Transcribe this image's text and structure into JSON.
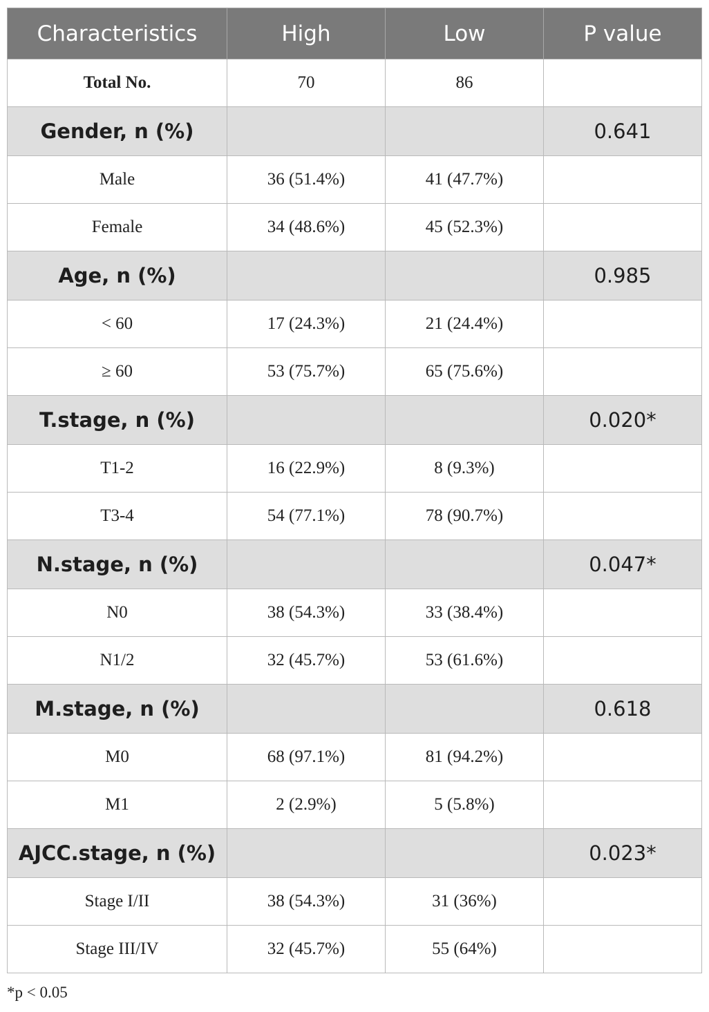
{
  "headers": [
    "Characteristics",
    "High",
    "Low",
    "P value"
  ],
  "total": {
    "label": "Total No.",
    "high": "70",
    "low": "86",
    "p": ""
  },
  "groups": [
    {
      "label": "Gender, n (%)",
      "p": "0.641",
      "rows": [
        {
          "label": "Male",
          "high": "36 (51.4%)",
          "low": "41 (47.7%)"
        },
        {
          "label": "Female",
          "high": "34 (48.6%)",
          "low": "45 (52.3%)"
        }
      ]
    },
    {
      "label": "Age, n (%)",
      "p": "0.985",
      "rows": [
        {
          "label": "< 60",
          "high": "17 (24.3%)",
          "low": "21 (24.4%)"
        },
        {
          "label": "≥ 60",
          "high": "53 (75.7%)",
          "low": "65 (75.6%)"
        }
      ]
    },
    {
      "label": "T.stage, n (%)",
      "p": "0.020*",
      "rows": [
        {
          "label": "T1-2",
          "high": "16 (22.9%)",
          "low": "8 (9.3%)"
        },
        {
          "label": "T3-4",
          "high": "54 (77.1%)",
          "low": "78 (90.7%)"
        }
      ]
    },
    {
      "label": "N.stage, n (%)",
      "p": "0.047*",
      "rows": [
        {
          "label": "N0",
          "high": "38 (54.3%)",
          "low": "33 (38.4%)"
        },
        {
          "label": "N1/2",
          "high": "32 (45.7%)",
          "low": "53 (61.6%)"
        }
      ]
    },
    {
      "label": "M.stage, n (%)",
      "p": "0.618",
      "rows": [
        {
          "label": "M0",
          "high": "68 (97.1%)",
          "low": "81 (94.2%)"
        },
        {
          "label": "M1",
          "high": "2 (2.9%)",
          "low": "5 (5.8%)"
        }
      ]
    },
    {
      "label": "AJCC.stage, n (%)",
      "p": "0.023*",
      "rows": [
        {
          "label": "Stage I/II",
          "high": "38 (54.3%)",
          "low": "31 (36%)"
        },
        {
          "label": "Stage III/IV",
          "high": "32 (45.7%)",
          "low": "55 (64%)"
        }
      ]
    }
  ],
  "footnote": "*p < 0.05"
}
